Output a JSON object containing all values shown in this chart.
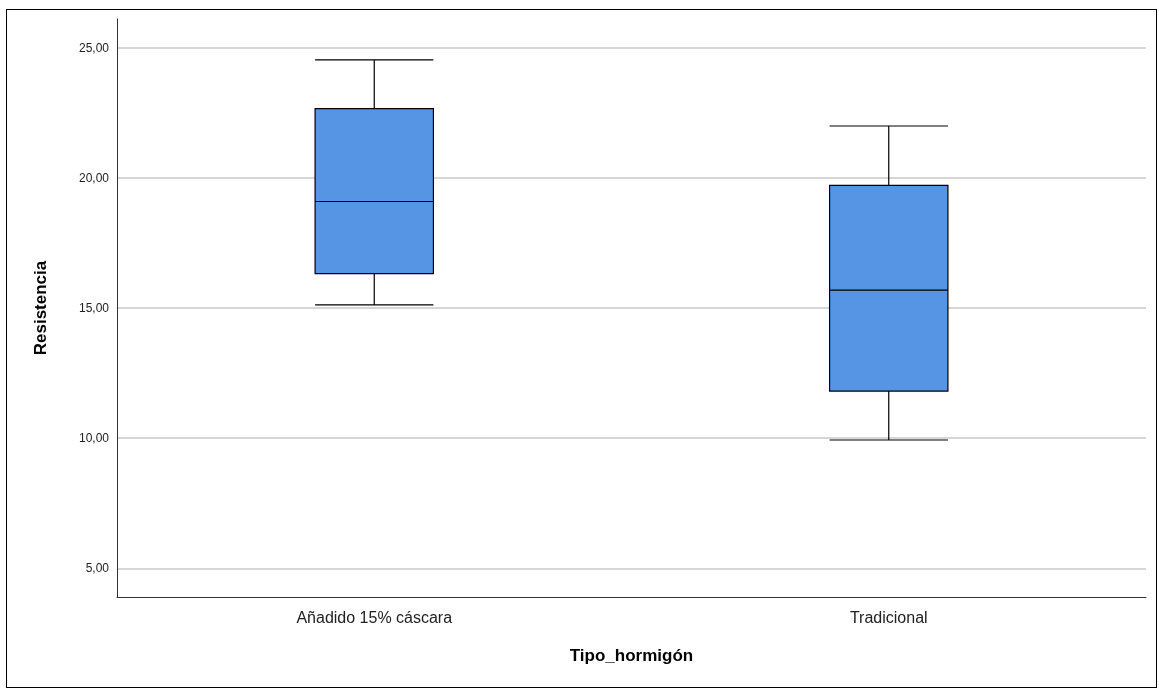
{
  "chart_data": {
    "type": "box",
    "xlabel": "Tipo_hormigón",
    "ylabel": "Resistencia",
    "categories": [
      "Añadido 15% cáscara",
      "Tradicional"
    ],
    "color": "#5595e3",
    "boxes": [
      {
        "low": 15.12,
        "q1": 16.32,
        "median": 19.09,
        "q3": 22.66,
        "high": 24.53
      },
      {
        "low": 9.93,
        "q1": 11.81,
        "median": 15.69,
        "q3": 19.71,
        "high": 21.99
      }
    ],
    "ylim": [
      3.9,
      26.1
    ],
    "yticks": [
      {
        "value": 5,
        "label": "5,00"
      },
      {
        "value": 10,
        "label": "10,00"
      },
      {
        "value": 15,
        "label": "15,00"
      },
      {
        "value": 20,
        "label": "20,00"
      },
      {
        "value": 25,
        "label": "25,00"
      }
    ],
    "grid": "y"
  }
}
